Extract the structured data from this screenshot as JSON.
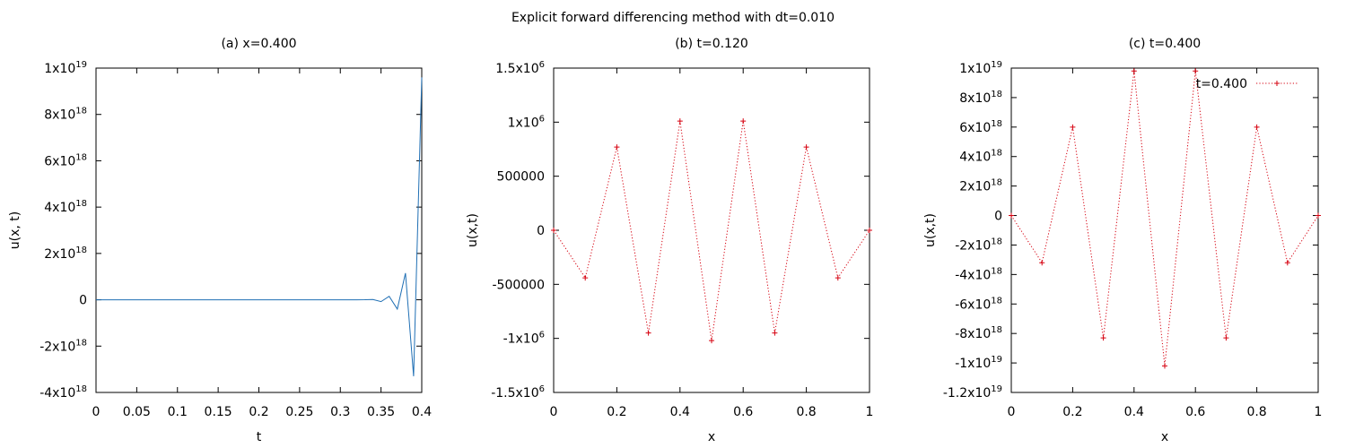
{
  "figure_title": "Explicit forward differencing method with dt=0.010",
  "chart_data": [
    {
      "type": "line",
      "title": "(a) x=0.400",
      "xlabel": "t",
      "ylabel": "u(x, t)",
      "xlim": [
        0,
        0.4
      ],
      "ylim": [
        -4e+18,
        1e+19
      ],
      "xticks": [
        0,
        0.05,
        0.1,
        0.15,
        0.2,
        0.25,
        0.3,
        0.35,
        0.4
      ],
      "xtick_labels": [
        "0",
        "0.05",
        "0.1",
        "0.15",
        "0.2",
        "0.25",
        "0.3",
        "0.35",
        "0.4"
      ],
      "yticks": [
        -4e+18,
        -2e+18,
        0,
        2e+18,
        4e+18,
        6e+18,
        8e+18,
        1e+19
      ],
      "ytick_labels": [
        {
          "base": "-4x10",
          "exp": "18"
        },
        {
          "base": "-2x10",
          "exp": "18"
        },
        {
          "base": "0",
          "exp": ""
        },
        {
          "base": "2x10",
          "exp": "18"
        },
        {
          "base": "4x10",
          "exp": "18"
        },
        {
          "base": "6x10",
          "exp": "18"
        },
        {
          "base": "8x10",
          "exp": "18"
        },
        {
          "base": "1x10",
          "exp": "19"
        }
      ],
      "grid": false,
      "series": [
        {
          "color": "#1f6fb4",
          "style": "solid",
          "marker": "none",
          "x": [
            0,
            0.01,
            0.02,
            0.03,
            0.04,
            0.05,
            0.06,
            0.07,
            0.08,
            0.09,
            0.1,
            0.11,
            0.12,
            0.13,
            0.14,
            0.15,
            0.16,
            0.17,
            0.18,
            0.19,
            0.2,
            0.21,
            0.22,
            0.23,
            0.24,
            0.25,
            0.26,
            0.27,
            0.28,
            0.29,
            0.3,
            0.31,
            0.32,
            0.33,
            0.34,
            0.35,
            0.36,
            0.37,
            0.38,
            0.39,
            0.4
          ],
          "y": [
            0,
            0,
            0,
            0,
            0,
            0,
            0,
            0,
            0,
            0,
            0,
            0,
            0,
            0,
            0,
            0,
            0,
            0,
            0,
            0,
            0,
            0,
            0,
            0,
            0,
            0,
            0,
            0,
            0,
            0,
            0,
            0,
            0,
            1000000000000000.0,
            1e+16,
            -8e+16,
            1.5e+17,
            -4e+17,
            1.15e+18,
            -3.3e+18,
            9.6e+18
          ]
        }
      ]
    },
    {
      "type": "line",
      "title": "(b) t=0.120",
      "xlabel": "x",
      "ylabel": "u(x,t)",
      "xlim": [
        0,
        1
      ],
      "ylim": [
        -1500000,
        1500000
      ],
      "xticks": [
        0,
        0.2,
        0.4,
        0.6,
        0.8,
        1
      ],
      "xtick_labels": [
        "0",
        "0.2",
        "0.4",
        "0.6",
        "0.8",
        "1"
      ],
      "yticks": [
        -1500000,
        -1000000,
        -500000,
        0,
        500000,
        1000000,
        1500000
      ],
      "ytick_labels": [
        {
          "base": "-1.5x10",
          "exp": "6"
        },
        {
          "base": "-1x10",
          "exp": "6"
        },
        {
          "base": "-500000",
          "exp": ""
        },
        {
          "base": "0",
          "exp": ""
        },
        {
          "base": "500000",
          "exp": ""
        },
        {
          "base": "1x10",
          "exp": "6"
        },
        {
          "base": "1.5x10",
          "exp": "6"
        }
      ],
      "grid": false,
      "series": [
        {
          "color": "#d6000f",
          "style": "dotted",
          "marker": "+",
          "x": [
            0,
            0.1,
            0.2,
            0.3,
            0.4,
            0.5,
            0.6,
            0.7,
            0.8,
            0.9,
            1.0
          ],
          "y": [
            0,
            -440000,
            770000,
            -950000,
            1010000,
            -1020000,
            1010000,
            -950000,
            770000,
            -440000,
            0
          ]
        }
      ]
    },
    {
      "type": "line",
      "title": "(c) t=0.400",
      "xlabel": "x",
      "ylabel": "u(x,t)",
      "xlim": [
        0,
        1
      ],
      "ylim": [
        -1.2e+19,
        1e+19
      ],
      "xticks": [
        0,
        0.2,
        0.4,
        0.6,
        0.8,
        1
      ],
      "xtick_labels": [
        "0",
        "0.2",
        "0.4",
        "0.6",
        "0.8",
        "1"
      ],
      "yticks": [
        -1.2e+19,
        -1e+19,
        -8e+18,
        -6e+18,
        -4e+18,
        -2e+18,
        0,
        2e+18,
        4e+18,
        6e+18,
        8e+18,
        1e+19
      ],
      "ytick_labels": [
        {
          "base": "-1.2x10",
          "exp": "19"
        },
        {
          "base": "-1x10",
          "exp": "19"
        },
        {
          "base": "-8x10",
          "exp": "18"
        },
        {
          "base": "-6x10",
          "exp": "18"
        },
        {
          "base": "-4x10",
          "exp": "18"
        },
        {
          "base": "-2x10",
          "exp": "18"
        },
        {
          "base": "0",
          "exp": ""
        },
        {
          "base": "2x10",
          "exp": "18"
        },
        {
          "base": "4x10",
          "exp": "18"
        },
        {
          "base": "6x10",
          "exp": "18"
        },
        {
          "base": "8x10",
          "exp": "18"
        },
        {
          "base": "1x10",
          "exp": "19"
        }
      ],
      "grid": false,
      "legend": {
        "position": "top-right"
      },
      "series": [
        {
          "name": "t=0.400",
          "color": "#d6000f",
          "style": "dotted",
          "marker": "+",
          "x": [
            0,
            0.1,
            0.2,
            0.3,
            0.4,
            0.5,
            0.6,
            0.7,
            0.8,
            0.9,
            1.0
          ],
          "y": [
            0,
            -3.2e+18,
            6e+18,
            -8.3e+18,
            9.8e+18,
            -1.02e+19,
            9.8e+18,
            -8.3e+18,
            6e+18,
            -3.2e+18,
            0
          ]
        }
      ]
    }
  ]
}
